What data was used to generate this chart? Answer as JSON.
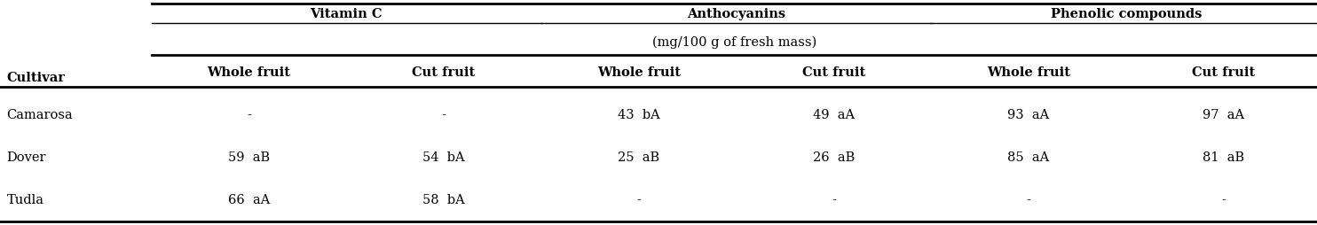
{
  "group_headers": [
    "Vitamin C",
    "Anthocyanins",
    "Phenolic compounds"
  ],
  "subtitle": "(mg/100 g of fresh mass)",
  "subheaders": [
    "Whole fruit",
    "Cut fruit",
    "Whole fruit",
    "Cut fruit",
    "Whole fruit",
    "Cut fruit"
  ],
  "cultivar_label": "Cultivar",
  "cultivars": [
    "Camarosa",
    "Dover",
    "Tudla"
  ],
  "data": [
    [
      "-",
      "-",
      "43  bA",
      "49  aA",
      "93  aA",
      "97  aA"
    ],
    [
      "59  aB",
      "54  bA",
      "25  aB",
      "26  aB",
      "85  aA",
      "81  aB"
    ],
    [
      "66  aA",
      "58  bA",
      "-",
      "-",
      "-",
      "-"
    ]
  ],
  "font_size": 10.5,
  "bg_color": "white"
}
